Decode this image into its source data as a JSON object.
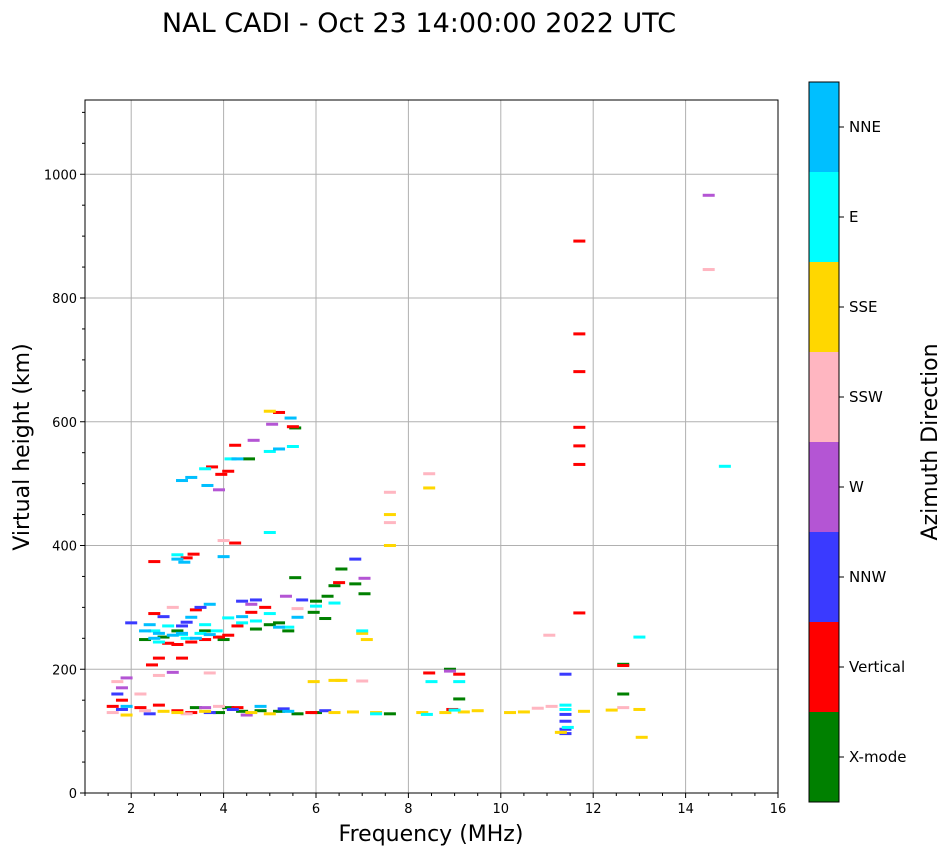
{
  "chart_data": {
    "type": "scatter",
    "title": "NAL CADI - Oct 23 14:00:00 2022 UTC",
    "xlabel": "Frequency (MHz)",
    "ylabel": "Virtual height (km)",
    "xlim": [
      1,
      16
    ],
    "ylim": [
      0,
      1120
    ],
    "xticks": [
      "2",
      "4",
      "6",
      "8",
      "10",
      "12",
      "14",
      "16"
    ],
    "yticks": [
      "0",
      "200",
      "400",
      "600",
      "800",
      "1000"
    ],
    "xtick_values": [
      2,
      4,
      6,
      8,
      10,
      12,
      14,
      16
    ],
    "ytick_values": [
      0,
      200,
      400,
      600,
      800,
      1000
    ],
    "grid": true,
    "colorbar": {
      "title": "Azimuth Direction",
      "categories": [
        "X-mode",
        "Vertical",
        "NNW",
        "W",
        "SSW",
        "SSE",
        "E",
        "NNE"
      ],
      "colors": [
        "#008000",
        "#ff0000",
        "#3a3aff",
        "#b455d4",
        "#ffb6c1",
        "#ffd700",
        "#00ffff",
        "#00bfff"
      ]
    },
    "series": [
      {
        "name": "X-mode",
        "points": [
          [
            4.55,
            540
          ],
          [
            5.55,
            590
          ],
          [
            6.0,
            310
          ],
          [
            6.25,
            318
          ],
          [
            6.55,
            362
          ],
          [
            6.85,
            338
          ],
          [
            7.05,
            322
          ],
          [
            5.55,
            348
          ],
          [
            5.0,
            272
          ],
          [
            5.4,
            262
          ],
          [
            4.1,
            138
          ],
          [
            4.4,
            132
          ],
          [
            4.8,
            133
          ],
          [
            5.2,
            132
          ],
          [
            5.6,
            128
          ],
          [
            6.0,
            130
          ],
          [
            3.4,
            138
          ],
          [
            3.9,
            130
          ],
          [
            7.6,
            128
          ],
          [
            8.9,
            200
          ],
          [
            9.1,
            152
          ],
          [
            12.65,
            160
          ],
          [
            12.65,
            208
          ],
          [
            4.7,
            265
          ],
          [
            5.2,
            275
          ],
          [
            5.95,
            292
          ],
          [
            6.4,
            335
          ],
          [
            6.2,
            282
          ],
          [
            3.0,
            262
          ],
          [
            3.6,
            262
          ],
          [
            2.3,
            248
          ],
          [
            2.7,
            252
          ],
          [
            4.0,
            248
          ]
        ]
      },
      {
        "name": "Vertical",
        "points": [
          [
            11.7,
            892
          ],
          [
            11.7,
            742
          ],
          [
            11.7,
            681
          ],
          [
            11.7,
            591
          ],
          [
            11.7,
            561
          ],
          [
            11.7,
            531
          ],
          [
            11.7,
            291
          ],
          [
            3.95,
            515
          ],
          [
            4.1,
            520
          ],
          [
            4.25,
            562
          ],
          [
            3.75,
            527
          ],
          [
            5.2,
            615
          ],
          [
            5.5,
            592
          ],
          [
            4.25,
            404
          ],
          [
            3.35,
            386
          ],
          [
            3.2,
            380
          ],
          [
            2.5,
            374
          ],
          [
            3.1,
            218
          ],
          [
            3.0,
            240
          ],
          [
            2.6,
            218
          ],
          [
            2.45,
            207
          ],
          [
            3.6,
            248
          ],
          [
            3.9,
            252
          ],
          [
            4.1,
            255
          ],
          [
            2.8,
            242
          ],
          [
            3.3,
            244
          ],
          [
            4.3,
            270
          ],
          [
            4.6,
            292
          ],
          [
            4.9,
            300
          ],
          [
            2.5,
            290
          ],
          [
            3.4,
            296
          ],
          [
            2.6,
            142
          ],
          [
            3.0,
            133
          ],
          [
            3.3,
            130
          ],
          [
            2.2,
            138
          ],
          [
            4.3,
            138
          ],
          [
            5.9,
            130
          ],
          [
            8.95,
            135
          ],
          [
            9.1,
            192
          ],
          [
            8.45,
            194
          ],
          [
            12.65,
            206
          ],
          [
            6.5,
            340
          ],
          [
            1.8,
            150
          ],
          [
            1.6,
            140
          ]
        ]
      },
      {
        "name": "NNW",
        "points": [
          [
            11.4,
            192
          ],
          [
            11.4,
            116
          ],
          [
            11.4,
            103
          ],
          [
            11.4,
            96
          ],
          [
            11.4,
            127
          ],
          [
            6.85,
            378
          ],
          [
            5.7,
            312
          ],
          [
            4.4,
            310
          ],
          [
            4.7,
            312
          ],
          [
            3.5,
            300
          ],
          [
            2.7,
            285
          ],
          [
            3.2,
            276
          ],
          [
            2.0,
            275
          ],
          [
            1.7,
            160
          ],
          [
            1.8,
            135
          ],
          [
            3.7,
            130
          ],
          [
            4.2,
            135
          ],
          [
            5.3,
            136
          ],
          [
            6.2,
            133
          ],
          [
            2.4,
            128
          ],
          [
            3.1,
            270
          ]
        ]
      },
      {
        "name": "W",
        "points": [
          [
            14.5,
            966
          ],
          [
            7.05,
            347
          ],
          [
            4.65,
            570
          ],
          [
            5.05,
            596
          ],
          [
            4.6,
            305
          ],
          [
            5.35,
            318
          ],
          [
            3.9,
            490
          ],
          [
            1.9,
            186
          ],
          [
            2.9,
            195
          ],
          [
            3.6,
            138
          ],
          [
            4.5,
            126
          ],
          [
            8.9,
            197
          ],
          [
            1.8,
            170
          ]
        ]
      },
      {
        "name": "SSW",
        "points": [
          [
            14.5,
            846
          ],
          [
            7.6,
            486
          ],
          [
            8.45,
            516
          ],
          [
            7.6,
            437
          ],
          [
            11.05,
            255
          ],
          [
            12.65,
            138
          ],
          [
            11.1,
            140
          ],
          [
            10.8,
            137
          ],
          [
            4.0,
            408
          ],
          [
            3.9,
            140
          ],
          [
            5.6,
            298
          ],
          [
            2.2,
            160
          ],
          [
            2.6,
            190
          ],
          [
            2.9,
            300
          ],
          [
            1.6,
            130
          ],
          [
            2.3,
            133
          ],
          [
            3.2,
            128
          ],
          [
            7.0,
            181
          ],
          [
            3.7,
            194
          ],
          [
            1.7,
            180
          ]
        ]
      },
      {
        "name": "SSE",
        "points": [
          [
            7.6,
            450
          ],
          [
            7.6,
            400
          ],
          [
            8.45,
            493
          ],
          [
            7.0,
            258
          ],
          [
            7.1,
            248
          ],
          [
            6.55,
            182
          ],
          [
            6.4,
            182
          ],
          [
            5.95,
            180
          ],
          [
            13.05,
            90
          ],
          [
            13.0,
            135
          ],
          [
            12.4,
            134
          ],
          [
            11.8,
            132
          ],
          [
            10.2,
            130
          ],
          [
            10.5,
            131
          ],
          [
            9.2,
            131
          ],
          [
            8.8,
            130
          ],
          [
            7.3,
            130
          ],
          [
            6.8,
            131
          ],
          [
            6.4,
            130
          ],
          [
            5.0,
            128
          ],
          [
            4.6,
            130
          ],
          [
            3.6,
            132
          ],
          [
            2.7,
            132
          ],
          [
            1.9,
            126
          ],
          [
            5.0,
            617
          ],
          [
            3.0,
            130
          ],
          [
            8.3,
            130
          ],
          [
            9.5,
            133
          ],
          [
            11.3,
            98
          ]
        ]
      },
      {
        "name": "E",
        "points": [
          [
            14.85,
            528
          ],
          [
            5.0,
            421
          ],
          [
            13.0,
            252
          ],
          [
            8.5,
            180
          ],
          [
            9.1,
            180
          ],
          [
            11.4,
            142
          ],
          [
            11.45,
            106
          ],
          [
            11.4,
            135
          ],
          [
            8.4,
            127
          ],
          [
            9.0,
            134
          ],
          [
            5.5,
            560
          ],
          [
            5.0,
            552
          ],
          [
            4.15,
            540
          ],
          [
            3.6,
            524
          ],
          [
            3.85,
            262
          ],
          [
            4.4,
            275
          ],
          [
            2.5,
            262
          ],
          [
            3.2,
            250
          ],
          [
            3.5,
            258
          ],
          [
            6.0,
            302
          ],
          [
            5.0,
            290
          ],
          [
            4.7,
            278
          ],
          [
            2.8,
            270
          ],
          [
            2.6,
            244
          ],
          [
            3.1,
            256
          ],
          [
            3.6,
            272
          ],
          [
            4.1,
            283
          ],
          [
            5.4,
            268
          ],
          [
            6.4,
            307
          ],
          [
            7.0,
            262
          ],
          [
            7.3,
            128
          ],
          [
            3.0,
            385
          ]
        ]
      },
      {
        "name": "NNE",
        "points": [
          [
            5.45,
            606
          ],
          [
            3.1,
            505
          ],
          [
            3.3,
            510
          ],
          [
            3.65,
            497
          ],
          [
            4.3,
            540
          ],
          [
            5.2,
            556
          ],
          [
            3.0,
            378
          ],
          [
            3.15,
            373
          ],
          [
            4.0,
            382
          ],
          [
            2.5,
            250
          ],
          [
            2.6,
            258
          ],
          [
            2.9,
            255
          ],
          [
            3.1,
            258
          ],
          [
            3.4,
            250
          ],
          [
            3.7,
            256
          ],
          [
            3.3,
            284
          ],
          [
            3.7,
            305
          ],
          [
            4.4,
            285
          ],
          [
            5.2,
            268
          ],
          [
            5.6,
            284
          ],
          [
            2.3,
            262
          ],
          [
            2.4,
            272
          ],
          [
            1.9,
            140
          ],
          [
            4.8,
            140
          ],
          [
            5.4,
            132
          ]
        ]
      }
    ]
  }
}
